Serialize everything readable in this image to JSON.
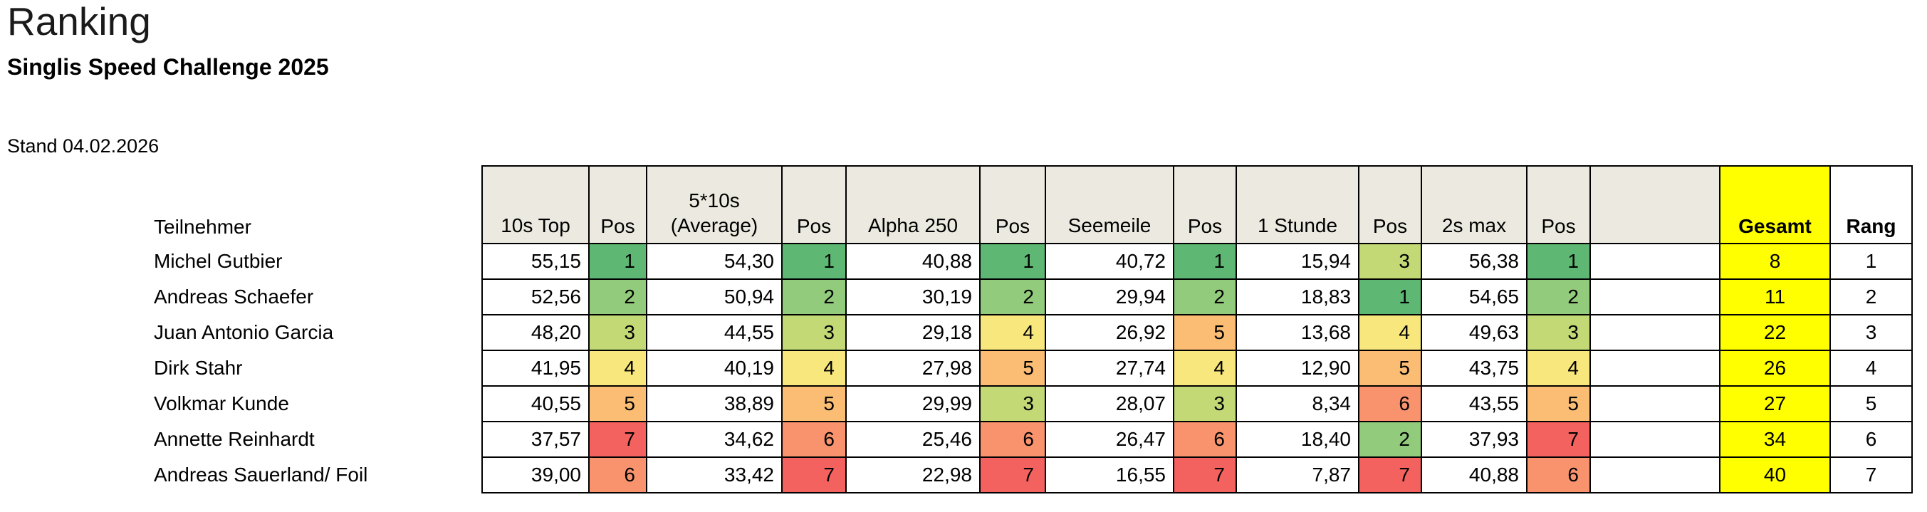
{
  "page": {
    "title": "Ranking",
    "subtitle": "Singlis Speed Challenge 2025",
    "date_label": "Stand 04.02.2026"
  },
  "colors": {
    "border": "#000000",
    "header_bg": "#ECEAE0",
    "gesamt_bg": "#FFFF00",
    "pos_scale": {
      "1": "#5EB873",
      "2": "#92CB7B",
      "3": "#C2D976",
      "4": "#F8E77C",
      "5": "#FABD73",
      "6": "#F9936E",
      "7": "#F4625F"
    }
  },
  "table": {
    "participant_header": "Teilnehmer",
    "disciplines": [
      {
        "slug": "10s-top",
        "label_lines": [
          "10s Top"
        ],
        "pos_label": "Pos"
      },
      {
        "slug": "5x10s-average",
        "label_lines": [
          "5*10s",
          "(Average)"
        ],
        "pos_label": "Pos"
      },
      {
        "slug": "alpha-250",
        "label_lines": [
          "Alpha 250"
        ],
        "pos_label": "Pos"
      },
      {
        "slug": "seemeile",
        "label_lines": [
          "Seemeile"
        ],
        "pos_label": "Pos"
      },
      {
        "slug": "1-stunde",
        "label_lines": [
          "1 Stunde"
        ],
        "pos_label": "Pos"
      },
      {
        "slug": "2s-max",
        "label_lines": [
          "2s max"
        ],
        "pos_label": "Pos"
      }
    ],
    "spacer_label": "",
    "gesamt_label": "Gesamt",
    "rang_label": "Rang",
    "rows": [
      {
        "name": "Michel Gutbier",
        "results": [
          {
            "value": "55,15",
            "pos": 1
          },
          {
            "value": "54,30",
            "pos": 1
          },
          {
            "value": "40,88",
            "pos": 1
          },
          {
            "value": "40,72",
            "pos": 1
          },
          {
            "value": "15,94",
            "pos": 3
          },
          {
            "value": "56,38",
            "pos": 1
          }
        ],
        "gesamt": "8",
        "rang": "1"
      },
      {
        "name": "Andreas Schaefer",
        "results": [
          {
            "value": "52,56",
            "pos": 2
          },
          {
            "value": "50,94",
            "pos": 2
          },
          {
            "value": "30,19",
            "pos": 2
          },
          {
            "value": "29,94",
            "pos": 2
          },
          {
            "value": "18,83",
            "pos": 1
          },
          {
            "value": "54,65",
            "pos": 2
          }
        ],
        "gesamt": "11",
        "rang": "2"
      },
      {
        "name": "Juan Antonio Garcia",
        "results": [
          {
            "value": "48,20",
            "pos": 3
          },
          {
            "value": "44,55",
            "pos": 3
          },
          {
            "value": "29,18",
            "pos": 4
          },
          {
            "value": "26,92",
            "pos": 5
          },
          {
            "value": "13,68",
            "pos": 4
          },
          {
            "value": "49,63",
            "pos": 3
          }
        ],
        "gesamt": "22",
        "rang": "3"
      },
      {
        "name": "Dirk Stahr",
        "results": [
          {
            "value": "41,95",
            "pos": 4
          },
          {
            "value": "40,19",
            "pos": 4
          },
          {
            "value": "27,98",
            "pos": 5
          },
          {
            "value": "27,74",
            "pos": 4
          },
          {
            "value": "12,90",
            "pos": 5
          },
          {
            "value": "43,75",
            "pos": 4
          }
        ],
        "gesamt": "26",
        "rang": "4"
      },
      {
        "name": "Volkmar Kunde",
        "results": [
          {
            "value": "40,55",
            "pos": 5
          },
          {
            "value": "38,89",
            "pos": 5
          },
          {
            "value": "29,99",
            "pos": 3
          },
          {
            "value": "28,07",
            "pos": 3
          },
          {
            "value": "8,34",
            "pos": 6
          },
          {
            "value": "43,55",
            "pos": 5
          }
        ],
        "gesamt": "27",
        "rang": "5"
      },
      {
        "name": "Annette Reinhardt",
        "results": [
          {
            "value": "37,57",
            "pos": 7
          },
          {
            "value": "34,62",
            "pos": 6
          },
          {
            "value": "25,46",
            "pos": 6
          },
          {
            "value": "26,47",
            "pos": 6
          },
          {
            "value": "18,40",
            "pos": 2
          },
          {
            "value": "37,93",
            "pos": 7
          }
        ],
        "gesamt": "34",
        "rang": "6"
      },
      {
        "name": "Andreas Sauerland/ Foil",
        "results": [
          {
            "value": "39,00",
            "pos": 6
          },
          {
            "value": "33,42",
            "pos": 7
          },
          {
            "value": "22,98",
            "pos": 7
          },
          {
            "value": "16,55",
            "pos": 7
          },
          {
            "value": "7,87",
            "pos": 7
          },
          {
            "value": "40,88",
            "pos": 6
          }
        ],
        "gesamt": "40",
        "rang": "7"
      }
    ]
  }
}
